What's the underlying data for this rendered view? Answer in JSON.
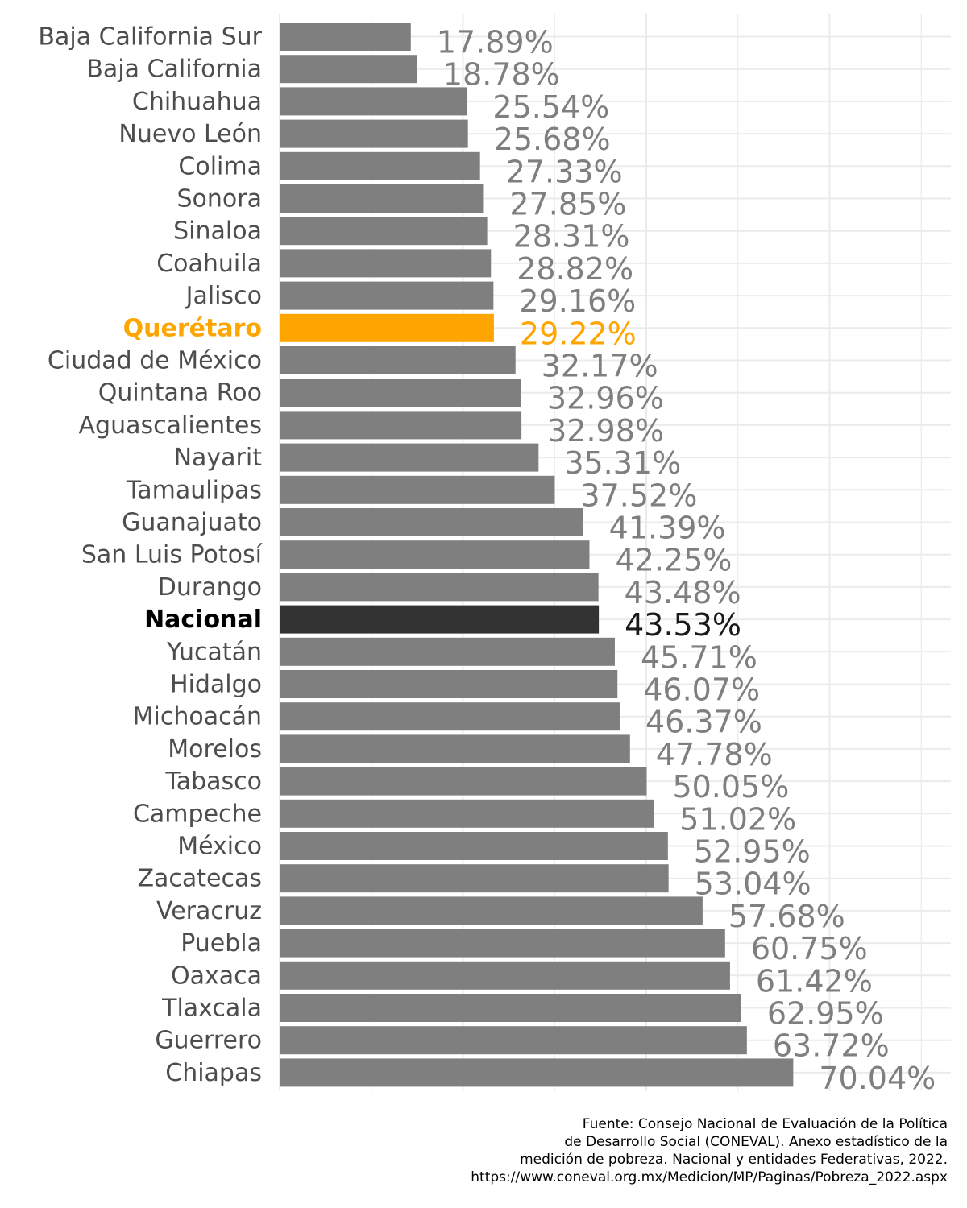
{
  "chart_data": {
    "type": "bar",
    "orientation": "horizontal",
    "categories": [
      "Baja California Sur",
      "Baja California",
      "Chihuahua",
      "Nuevo León",
      "Colima",
      "Sonora",
      "Sinaloa",
      "Coahuila",
      "Jalisco",
      "Querétaro",
      "Ciudad de México",
      "Quintana Roo",
      "Aguascalientes",
      "Nayarit",
      "Tamaulipas",
      "Guanajuato",
      "San Luis Potosí",
      "Durango",
      "Nacional",
      "Yucatán",
      "Hidalgo",
      "Michoacán",
      "Morelos",
      "Tabasco",
      "Campeche",
      "México",
      "Zacatecas",
      "Veracruz",
      "Puebla",
      "Oaxaca",
      "Tlaxcala",
      "Guerrero",
      "Chiapas"
    ],
    "values": [
      17.89,
      18.78,
      25.54,
      25.68,
      27.33,
      27.85,
      28.31,
      28.82,
      29.16,
      29.22,
      32.17,
      32.96,
      32.98,
      35.31,
      37.52,
      41.39,
      42.25,
      43.48,
      43.53,
      45.71,
      46.07,
      46.37,
      47.78,
      50.05,
      51.02,
      52.95,
      53.04,
      57.68,
      60.75,
      61.42,
      62.95,
      63.72,
      70.04
    ],
    "value_labels": [
      "17.89%",
      "18.78%",
      "25.54%",
      "25.68%",
      "27.33%",
      "27.85%",
      "28.31%",
      "28.82%",
      "29.16%",
      "29.22%",
      "32.17%",
      "32.96%",
      "32.98%",
      "35.31%",
      "37.52%",
      "41.39%",
      "42.25%",
      "43.48%",
      "43.53%",
      "45.71%",
      "46.07%",
      "46.37%",
      "47.78%",
      "50.05%",
      "51.02%",
      "52.95%",
      "53.04%",
      "57.68%",
      "60.75%",
      "61.42%",
      "62.95%",
      "63.72%",
      "70.04%"
    ],
    "xlim": [
      0,
      70
    ],
    "grid": true,
    "colors": {
      "default": "#7f7f7f",
      "highlight": "#ffa500",
      "national": "#333333",
      "label": "#4d4d4d",
      "gridline": "#ebebeb"
    },
    "highlight": {
      "Querétaro": "highlight",
      "Nacional": "national"
    }
  },
  "source": {
    "lines": [
      "Fuente: Consejo Nacional de Evaluación de la Política",
      "de Desarrollo Social (CONEVAL). Anexo estadístico de la",
      "medición de pobreza. Nacional y entidades Federativas, 2022.",
      "https://www.coneval.org.mx/Medicion/MP/Paginas/Pobreza_2022.aspx"
    ]
  }
}
